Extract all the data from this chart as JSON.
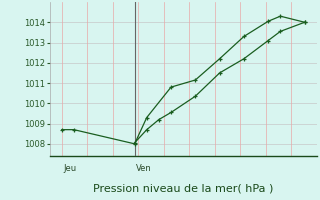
{
  "background_color": "#d8f5f0",
  "plot_bg_color": "#d8f5f0",
  "grid_color_h": "#c8c8c8",
  "grid_color_v": "#e8a8a8",
  "line_color": "#1a5e20",
  "ylabel_ticks": [
    1008,
    1009,
    1010,
    1011,
    1012,
    1013,
    1014
  ],
  "ylim": [
    1007.4,
    1015.0
  ],
  "xlabel": "Pression niveau de la mer( hPa )",
  "xlabel_fontsize": 8,
  "tick_fontsize": 6,
  "day_labels": [
    "Jeu",
    "Ven"
  ],
  "day_label_fontsize": 6,
  "vline_x": [
    3.0
  ],
  "vline_color": "#666666",
  "series1_x": [
    0.0,
    0.5,
    3.0,
    3.5,
    4.5,
    5.5,
    6.5,
    7.5,
    8.5,
    9.0,
    10.0
  ],
  "series1_y": [
    1008.7,
    1008.7,
    1008.0,
    1009.3,
    1010.8,
    1011.15,
    1012.2,
    1013.3,
    1014.05,
    1014.3,
    1014.0
  ],
  "series2_x": [
    3.0,
    3.5,
    4.0,
    4.5,
    5.5,
    6.5,
    7.5,
    8.5,
    9.0,
    10.0
  ],
  "series2_y": [
    1008.05,
    1008.7,
    1009.2,
    1009.55,
    1010.35,
    1011.5,
    1012.2,
    1013.1,
    1013.55,
    1014.0
  ],
  "xlim": [
    -0.5,
    10.5
  ],
  "jeu_x": 0.05,
  "ven_x": 3.05
}
